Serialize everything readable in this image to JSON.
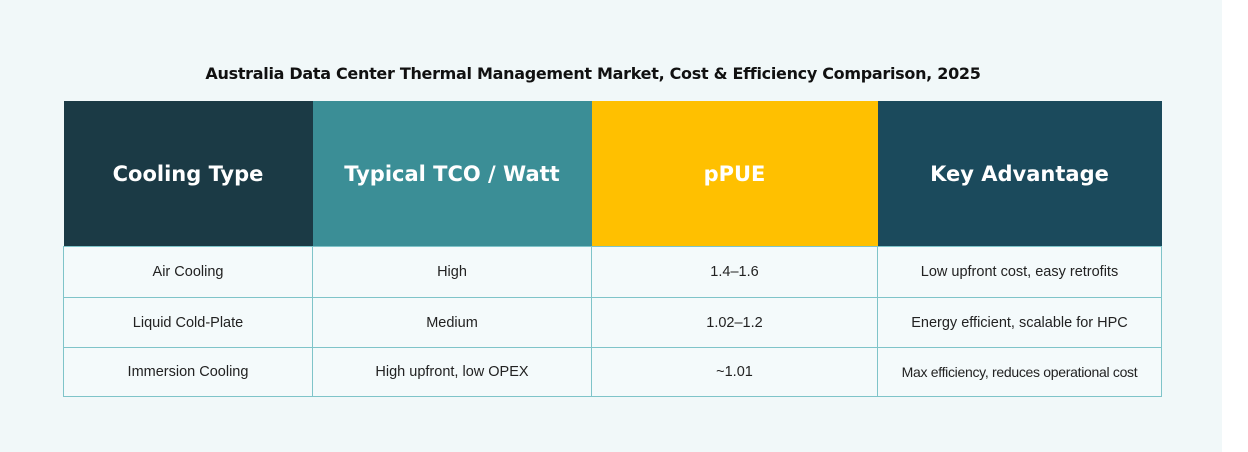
{
  "title": "Australia Data Center Thermal Management Market, Cost & Efficiency Comparison, 2025",
  "colors": {
    "background": "#f1f8f9",
    "header_cooling_type": "#1b3a45",
    "header_tco": "#3b8e96",
    "header_ppue": "#ffc000",
    "header_advantage": "#1b4a5c",
    "cell_border": "#7fc4c9"
  },
  "table": {
    "headers": [
      "Cooling Type",
      "Typical TCO / Watt",
      "pPUE",
      "Key Advantage"
    ],
    "rows": [
      [
        "Air Cooling",
        "High",
        "1.4–1.6",
        "Low upfront cost, easy retrofits"
      ],
      [
        "Liquid Cold-Plate",
        "Medium",
        "1.02–1.2",
        "Energy efficient, scalable for HPC"
      ],
      [
        "Immersion Cooling",
        "High upfront, low OPEX",
        "~1.01",
        "Max efficiency, reduces operational cost"
      ]
    ]
  }
}
